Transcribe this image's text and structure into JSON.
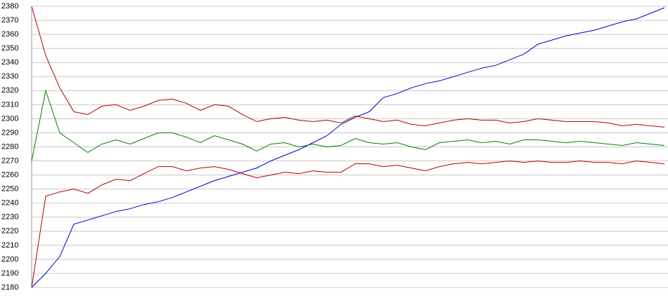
{
  "chart_data": {
    "type": "line",
    "grid": true,
    "ylim": [
      2180,
      2380
    ],
    "yticks": [
      2180,
      2190,
      2200,
      2210,
      2220,
      2230,
      2240,
      2250,
      2260,
      2270,
      2280,
      2290,
      2300,
      2310,
      2320,
      2330,
      2340,
      2350,
      2360,
      2370,
      2380
    ],
    "series": [
      {
        "color": "#0000c0",
        "values": [
          2180,
          2190,
          2202,
          2225,
          2228,
          2231,
          2234,
          2236,
          2239,
          2241,
          2244,
          2248,
          2252,
          2256,
          2259,
          2262,
          2265,
          2270,
          2274,
          2278,
          2283,
          2288,
          2296,
          2301,
          2305,
          2315,
          2318,
          2322,
          2325,
          2327,
          2330,
          2333,
          2336,
          2338,
          2342,
          2346,
          2353,
          2356,
          2359,
          2361,
          2363,
          2366,
          2369,
          2371,
          2375,
          2379
        ]
      },
      {
        "color": "#b00000",
        "values": [
          2380,
          2345,
          2322,
          2305,
          2303,
          2309,
          2310,
          2306,
          2309,
          2313,
          2314,
          2311,
          2306,
          2310,
          2309,
          2303,
          2298,
          2300,
          2301,
          2299,
          2298,
          2299,
          2297,
          2302,
          2300,
          2298,
          2299,
          2296,
          2295,
          2297,
          2299,
          2300,
          2299,
          2299,
          2297,
          2298,
          2300,
          2299,
          2298,
          2298,
          2298,
          2297,
          2295,
          2296,
          2295,
          2294
        ]
      },
      {
        "color": "#008000",
        "values": [
          2270,
          2320,
          2290,
          2283,
          2276,
          2282,
          2285,
          2282,
          2286,
          2290,
          2290,
          2287,
          2283,
          2288,
          2285,
          2282,
          2277,
          2282,
          2283,
          2280,
          2282,
          2280,
          2281,
          2286,
          2283,
          2282,
          2283,
          2280,
          2278,
          2283,
          2284,
          2285,
          2283,
          2284,
          2282,
          2285,
          2285,
          2284,
          2283,
          2284,
          2283,
          2282,
          2281,
          2283,
          2282,
          2281
        ]
      },
      {
        "color": "#b00000",
        "values": [
          2180,
          2245,
          2248,
          2250,
          2247,
          2253,
          2257,
          2256,
          2261,
          2266,
          2266,
          2263,
          2265,
          2266,
          2264,
          2261,
          2258,
          2260,
          2262,
          2261,
          2263,
          2262,
          2262,
          2268,
          2268,
          2266,
          2267,
          2265,
          2263,
          2266,
          2268,
          2269,
          2268,
          2269,
          2270,
          2269,
          2270,
          2269,
          2269,
          2270,
          2269,
          2269,
          2268,
          2270,
          2269,
          2268
        ]
      }
    ]
  }
}
